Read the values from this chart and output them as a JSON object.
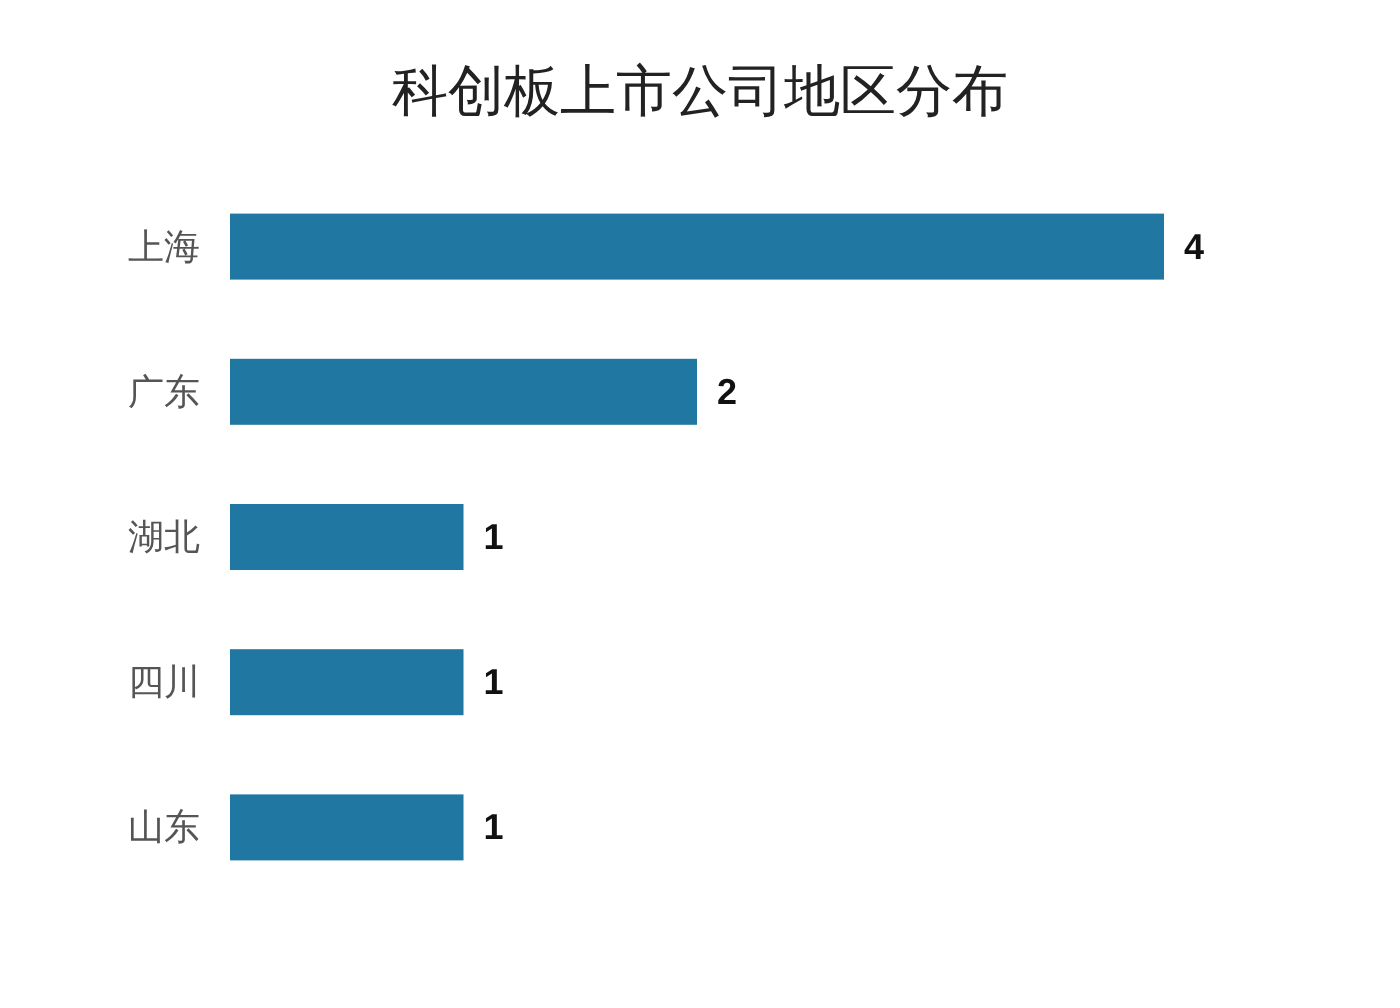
{
  "chart_data": {
    "type": "bar",
    "orientation": "horizontal",
    "title": "科创板上市公司地区分布",
    "categories": [
      "上海",
      "广东",
      "湖北",
      "四川",
      "山东"
    ],
    "values": [
      4,
      2,
      1,
      1,
      1
    ],
    "color": "#1f77a2",
    "data_labels": true
  }
}
